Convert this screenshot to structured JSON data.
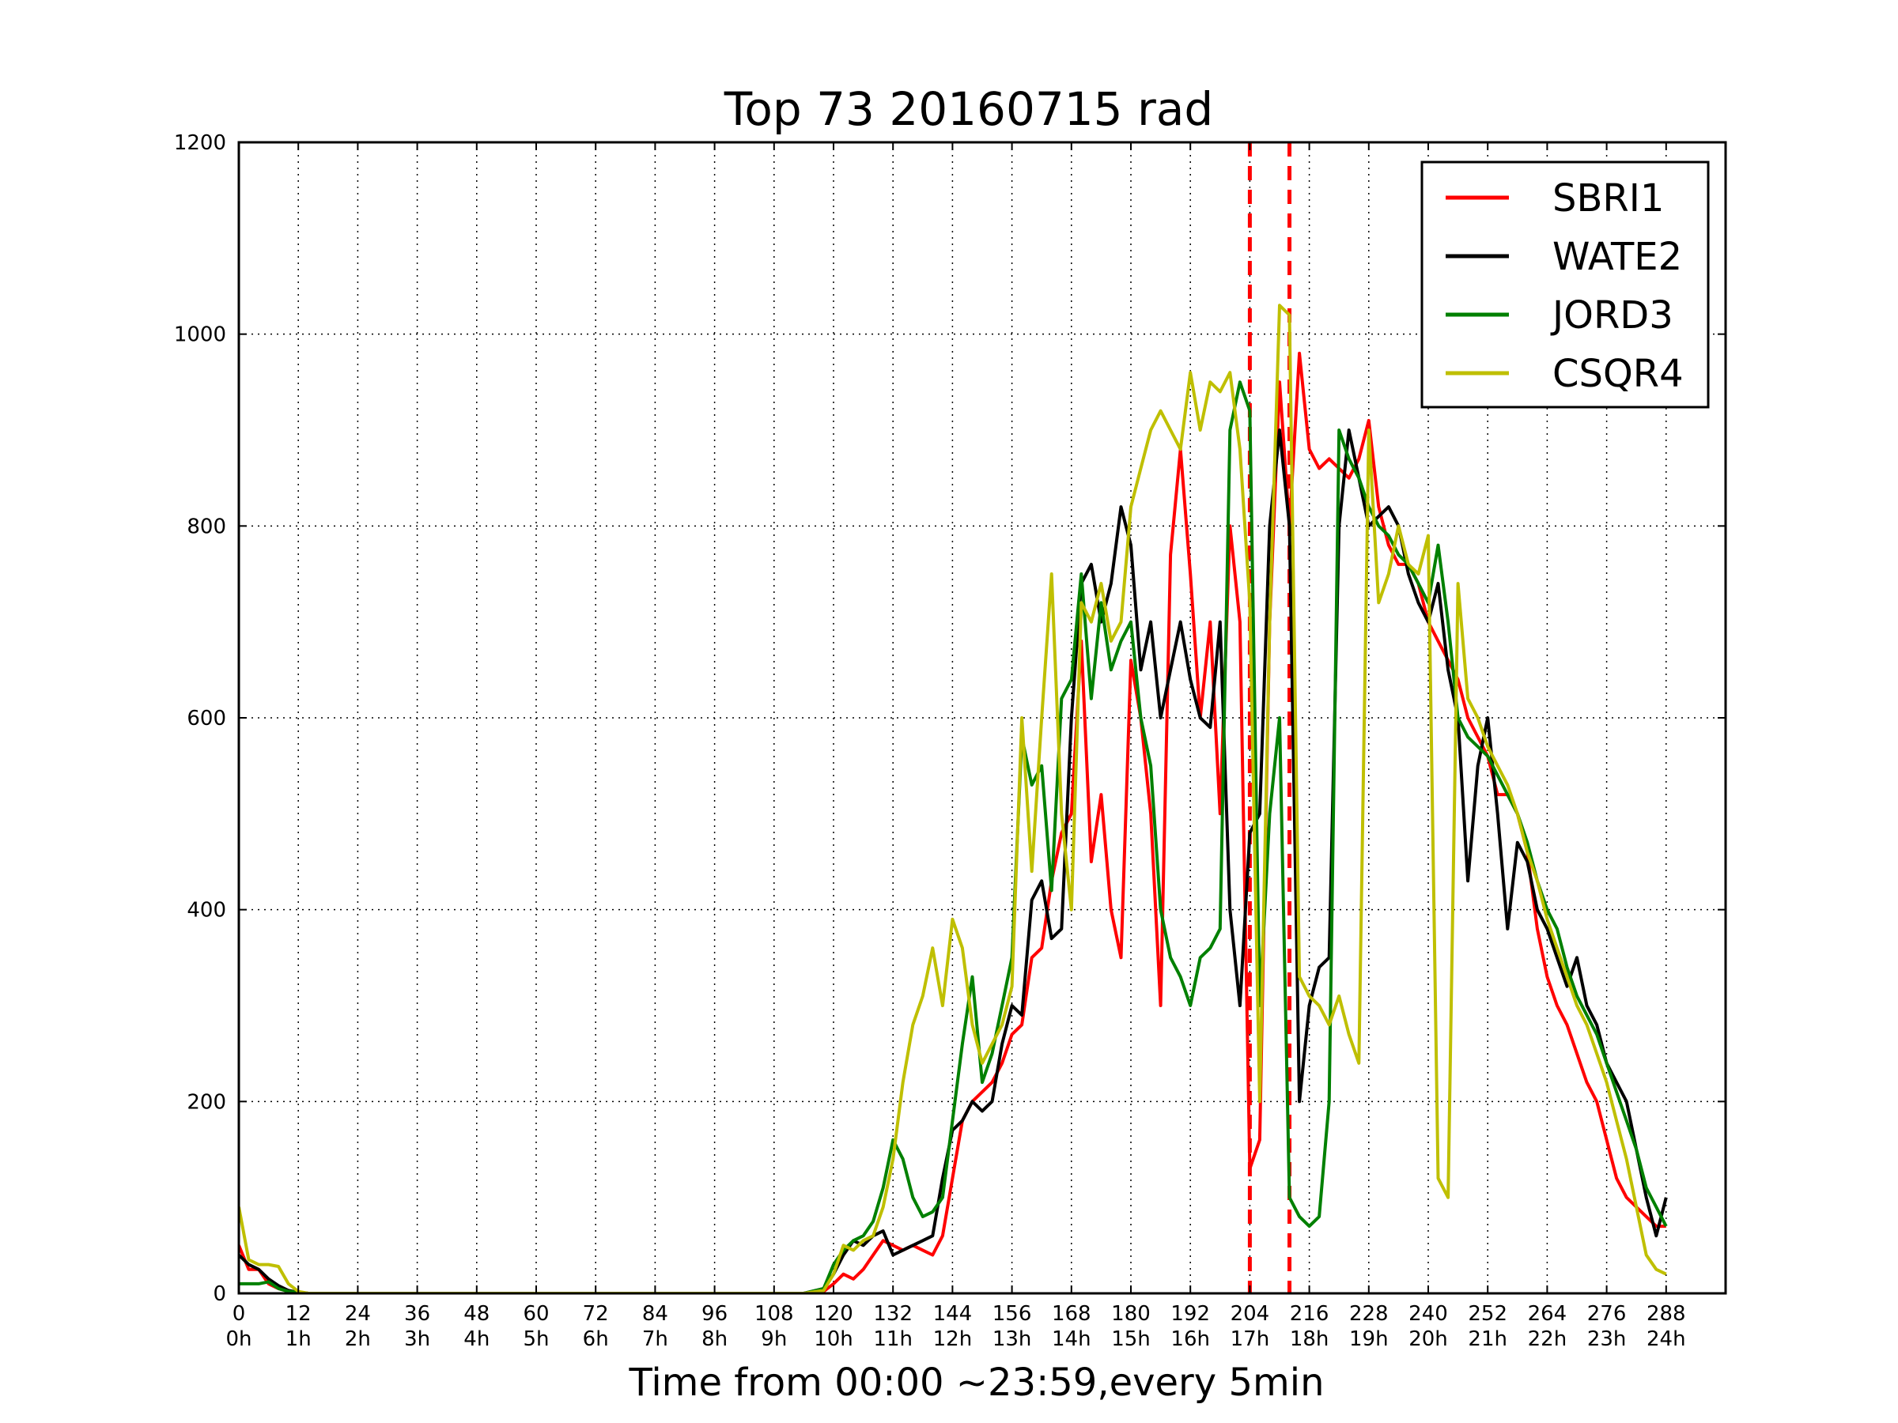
{
  "chart_data": {
    "type": "line",
    "title": "Top 73 20160715 rad",
    "xlabel": "Time from 00:00 ~23:59,every 5min",
    "ylabel": "",
    "xlim": [
      0,
      300
    ],
    "ylim": [
      0,
      1200
    ],
    "grid": true,
    "legend_position": "top-right",
    "x_ticks": [
      0,
      12,
      24,
      36,
      48,
      60,
      72,
      84,
      96,
      108,
      120,
      132,
      144,
      156,
      168,
      180,
      192,
      204,
      216,
      228,
      240,
      252,
      264,
      276,
      288
    ],
    "x_tick_labels_top": [
      "0",
      "12",
      "24",
      "36",
      "48",
      "60",
      "72",
      "84",
      "96",
      "108",
      "120",
      "132",
      "144",
      "156",
      "168",
      "180",
      "192",
      "204",
      "216",
      "228",
      "240",
      "252",
      "264",
      "276",
      "288"
    ],
    "x_tick_labels_bottom": [
      "0h",
      "1h",
      "2h",
      "3h",
      "4h",
      "5h",
      "6h",
      "7h",
      "8h",
      "9h",
      "10h",
      "11h",
      "12h",
      "13h",
      "14h",
      "15h",
      "16h",
      "17h",
      "18h",
      "19h",
      "20h",
      "21h",
      "22h",
      "23h",
      "24h"
    ],
    "y_ticks": [
      0,
      200,
      400,
      600,
      800,
      1000,
      1200
    ],
    "y_tick_labels": [
      "0",
      "200",
      "400",
      "600",
      "800",
      "1000",
      "1200"
    ],
    "vertical_lines": [
      {
        "x": 204,
        "color": "#ff0000",
        "style": "dashed"
      },
      {
        "x": 212,
        "color": "#ff0000",
        "style": "dashed"
      }
    ],
    "series": [
      {
        "name": "SBRI1",
        "color": "#ff0000",
        "x": [
          0,
          2,
          4,
          6,
          8,
          10,
          12,
          14,
          20,
          60,
          100,
          114,
          118,
          120,
          122,
          124,
          126,
          128,
          130,
          132,
          134,
          136,
          138,
          140,
          142,
          144,
          146,
          148,
          150,
          152,
          154,
          156,
          158,
          160,
          162,
          164,
          166,
          168,
          170,
          172,
          174,
          176,
          178,
          180,
          182,
          184,
          186,
          188,
          190,
          192,
          194,
          196,
          198,
          200,
          202,
          204,
          206,
          208,
          210,
          212,
          214,
          216,
          218,
          220,
          222,
          224,
          226,
          228,
          230,
          232,
          234,
          236,
          238,
          240,
          242,
          244,
          246,
          248,
          250,
          252,
          254,
          256,
          258,
          260,
          262,
          264,
          266,
          268,
          270,
          272,
          274,
          276,
          278,
          280,
          282,
          284,
          286,
          288
        ],
        "values": [
          50,
          25,
          25,
          10,
          5,
          2,
          1,
          0,
          0,
          0,
          0,
          0,
          2,
          10,
          20,
          15,
          25,
          40,
          55,
          50,
          45,
          50,
          45,
          40,
          60,
          120,
          180,
          200,
          210,
          220,
          240,
          270,
          280,
          350,
          360,
          430,
          480,
          500,
          680,
          450,
          520,
          400,
          350,
          660,
          600,
          500,
          300,
          770,
          880,
          750,
          600,
          700,
          500,
          800,
          700,
          130,
          160,
          700,
          950,
          800,
          980,
          880,
          860,
          870,
          860,
          850,
          870,
          910,
          820,
          780,
          760,
          760,
          740,
          700,
          680,
          660,
          640,
          600,
          580,
          560,
          520,
          520,
          500,
          460,
          380,
          330,
          300,
          280,
          250,
          220,
          200,
          160,
          120,
          100,
          90,
          80,
          70,
          70
        ]
      },
      {
        "name": "WATE2",
        "color": "#000000",
        "x": [
          0,
          2,
          4,
          6,
          8,
          10,
          12,
          14,
          20,
          60,
          100,
          114,
          118,
          120,
          122,
          124,
          126,
          128,
          130,
          132,
          134,
          136,
          138,
          140,
          142,
          144,
          146,
          148,
          150,
          152,
          154,
          156,
          158,
          160,
          162,
          164,
          166,
          168,
          170,
          172,
          174,
          176,
          178,
          180,
          182,
          184,
          186,
          188,
          190,
          192,
          194,
          196,
          198,
          200,
          202,
          204,
          206,
          208,
          210,
          212,
          214,
          216,
          218,
          220,
          222,
          224,
          226,
          228,
          230,
          232,
          234,
          236,
          238,
          240,
          242,
          244,
          246,
          248,
          250,
          252,
          254,
          256,
          258,
          260,
          262,
          264,
          266,
          268,
          270,
          272,
          274,
          276,
          278,
          280,
          282,
          284,
          286,
          288
        ],
        "values": [
          40,
          30,
          25,
          15,
          8,
          3,
          1,
          0,
          0,
          0,
          0,
          0,
          5,
          20,
          40,
          55,
          50,
          60,
          65,
          40,
          45,
          50,
          55,
          60,
          120,
          170,
          180,
          200,
          190,
          200,
          260,
          300,
          290,
          410,
          430,
          370,
          380,
          600,
          740,
          760,
          700,
          740,
          820,
          780,
          650,
          700,
          600,
          650,
          700,
          640,
          600,
          590,
          700,
          400,
          300,
          480,
          500,
          800,
          900,
          800,
          200,
          300,
          340,
          350,
          800,
          900,
          850,
          800,
          810,
          820,
          800,
          750,
          720,
          700,
          740,
          650,
          600,
          430,
          550,
          600,
          500,
          380,
          470,
          450,
          400,
          380,
          350,
          320,
          350,
          300,
          280,
          240,
          220,
          200,
          150,
          100,
          60,
          100
        ]
      },
      {
        "name": "JORD3",
        "color": "#008000",
        "x": [
          0,
          2,
          4,
          6,
          8,
          10,
          12,
          14,
          20,
          60,
          100,
          114,
          118,
          120,
          122,
          124,
          126,
          128,
          130,
          132,
          134,
          136,
          138,
          140,
          142,
          144,
          146,
          148,
          150,
          152,
          154,
          156,
          158,
          160,
          162,
          164,
          166,
          168,
          170,
          172,
          174,
          176,
          178,
          180,
          182,
          184,
          186,
          188,
          190,
          192,
          194,
          196,
          198,
          200,
          202,
          204,
          206,
          208,
          210,
          212,
          214,
          216,
          218,
          220,
          222,
          224,
          226,
          228,
          230,
          232,
          234,
          236,
          238,
          240,
          242,
          244,
          246,
          248,
          250,
          252,
          254,
          256,
          258,
          260,
          262,
          264,
          266,
          268,
          270,
          272,
          274,
          276,
          278,
          280,
          282,
          284,
          286,
          288
        ],
        "values": [
          10,
          10,
          10,
          12,
          5,
          2,
          1,
          0,
          0,
          0,
          0,
          0,
          5,
          30,
          45,
          55,
          60,
          75,
          110,
          160,
          140,
          100,
          80,
          85,
          100,
          180,
          260,
          330,
          220,
          250,
          300,
          350,
          580,
          530,
          550,
          420,
          620,
          640,
          750,
          620,
          720,
          650,
          680,
          700,
          600,
          550,
          400,
          350,
          330,
          300,
          350,
          360,
          380,
          900,
          950,
          920,
          300,
          500,
          600,
          100,
          80,
          70,
          80,
          200,
          900,
          870,
          850,
          820,
          800,
          790,
          770,
          760,
          740,
          720,
          780,
          700,
          600,
          580,
          570,
          560,
          540,
          520,
          500,
          470,
          430,
          400,
          380,
          340,
          310,
          290,
          270,
          240,
          210,
          180,
          150,
          110,
          90,
          70
        ]
      },
      {
        "name": "CSQR4",
        "color": "#bfbf00",
        "x": [
          0,
          2,
          4,
          6,
          8,
          10,
          12,
          14,
          20,
          60,
          100,
          114,
          118,
          120,
          122,
          124,
          126,
          128,
          130,
          132,
          134,
          136,
          138,
          140,
          142,
          144,
          146,
          148,
          150,
          152,
          154,
          156,
          158,
          160,
          162,
          164,
          166,
          168,
          170,
          172,
          174,
          176,
          178,
          180,
          182,
          184,
          186,
          188,
          190,
          192,
          194,
          196,
          198,
          200,
          202,
          204,
          206,
          208,
          210,
          212,
          214,
          216,
          218,
          220,
          222,
          224,
          226,
          228,
          230,
          232,
          234,
          236,
          238,
          240,
          242,
          244,
          246,
          248,
          250,
          252,
          254,
          256,
          258,
          260,
          262,
          264,
          266,
          268,
          270,
          272,
          274,
          276,
          278,
          280,
          282,
          284,
          286,
          288
        ],
        "values": [
          90,
          35,
          30,
          30,
          28,
          10,
          2,
          0,
          0,
          0,
          0,
          0,
          3,
          20,
          50,
          45,
          55,
          60,
          90,
          140,
          220,
          280,
          310,
          360,
          300,
          390,
          360,
          280,
          240,
          260,
          280,
          320,
          600,
          440,
          600,
          750,
          500,
          400,
          720,
          700,
          740,
          680,
          700,
          820,
          860,
          900,
          920,
          900,
          880,
          960,
          900,
          950,
          940,
          960,
          880,
          720,
          200,
          700,
          1030,
          1020,
          330,
          310,
          300,
          280,
          310,
          270,
          240,
          900,
          720,
          750,
          800,
          760,
          750,
          790,
          120,
          100,
          740,
          620,
          600,
          570,
          550,
          530,
          500,
          460,
          430,
          390,
          360,
          330,
          300,
          280,
          250,
          220,
          180,
          140,
          90,
          40,
          25,
          20
        ]
      }
    ]
  }
}
